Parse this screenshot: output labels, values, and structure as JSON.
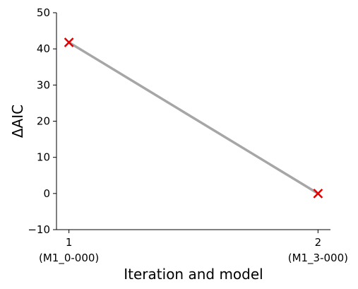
{
  "chart_data": {
    "type": "line",
    "xlabel": "Iteration and model",
    "ylabel": "ΔAIC",
    "x_ticks": [
      {
        "value": 1,
        "label": "1",
        "sublabel": "(M1_0-000)"
      },
      {
        "value": 2,
        "label": "2",
        "sublabel": "(M1_3-000)"
      }
    ],
    "y_ticks": [
      -10,
      0,
      10,
      20,
      30,
      40,
      50
    ],
    "ylim": [
      -10,
      50
    ],
    "xlim": [
      0.95,
      2.05
    ],
    "series": [
      {
        "x": [
          1,
          2
        ],
        "y": [
          41.8,
          0
        ],
        "line_color": "#a6a6a6",
        "marker": "x",
        "marker_color": "#e00000"
      }
    ],
    "grid": false,
    "spines": [
      "left",
      "bottom"
    ]
  }
}
